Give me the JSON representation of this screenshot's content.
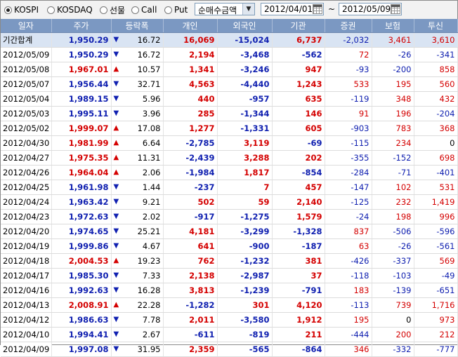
{
  "toolbar": {
    "radios": [
      {
        "label": "KOSPI",
        "checked": true
      },
      {
        "label": "KOSDAQ",
        "checked": false
      },
      {
        "label": "선물",
        "checked": false
      },
      {
        "label": "Call",
        "checked": false
      },
      {
        "label": "Put",
        "checked": false
      }
    ],
    "select_value": "순매수금액",
    "date_from": "2012/04/01",
    "date_to": "2012/05/09",
    "tilde": "~"
  },
  "table": {
    "headers": [
      "일자",
      "주가",
      "등락폭",
      "개인",
      "외국인",
      "기관",
      "증권",
      "보험",
      "투신"
    ],
    "rows": [
      {
        "date": "기간합계",
        "price": "1,950.29",
        "dir": "dn",
        "chg": "16.72",
        "indiv": "16,069",
        "foreign": "-15,024",
        "inst": "6,737",
        "sec": "-2,032",
        "ins": "3,461",
        "trust": "3,610"
      },
      {
        "date": "2012/05/09",
        "price": "1,950.29",
        "dir": "dn",
        "chg": "16.72",
        "indiv": "2,194",
        "foreign": "-3,468",
        "inst": "-562",
        "sec": "72",
        "ins": "-26",
        "trust": "-341"
      },
      {
        "date": "2012/05/08",
        "price": "1,967.01",
        "dir": "up",
        "chg": "10.57",
        "indiv": "1,341",
        "foreign": "-3,246",
        "inst": "947",
        "sec": "-93",
        "ins": "-200",
        "trust": "858"
      },
      {
        "date": "2012/05/07",
        "price": "1,956.44",
        "dir": "dn",
        "chg": "32.71",
        "indiv": "4,563",
        "foreign": "-4,440",
        "inst": "1,243",
        "sec": "533",
        "ins": "195",
        "trust": "560"
      },
      {
        "date": "2012/05/04",
        "price": "1,989.15",
        "dir": "dn",
        "chg": "5.96",
        "indiv": "440",
        "foreign": "-957",
        "inst": "635",
        "sec": "-119",
        "ins": "348",
        "trust": "432"
      },
      {
        "date": "2012/05/03",
        "price": "1,995.11",
        "dir": "dn",
        "chg": "3.96",
        "indiv": "285",
        "foreign": "-1,344",
        "inst": "146",
        "sec": "91",
        "ins": "196",
        "trust": "-204"
      },
      {
        "date": "2012/05/02",
        "price": "1,999.07",
        "dir": "up",
        "chg": "17.08",
        "indiv": "1,277",
        "foreign": "-1,331",
        "inst": "605",
        "sec": "-903",
        "ins": "783",
        "trust": "368"
      },
      {
        "date": "2012/04/30",
        "price": "1,981.99",
        "dir": "up",
        "chg": "6.64",
        "indiv": "-2,785",
        "foreign": "3,119",
        "inst": "-69",
        "sec": "-115",
        "ins": "234",
        "trust": "0"
      },
      {
        "date": "2012/04/27",
        "price": "1,975.35",
        "dir": "up",
        "chg": "11.31",
        "indiv": "-2,439",
        "foreign": "3,288",
        "inst": "202",
        "sec": "-355",
        "ins": "-152",
        "trust": "698"
      },
      {
        "date": "2012/04/26",
        "price": "1,964.04",
        "dir": "up",
        "chg": "2.06",
        "indiv": "-1,984",
        "foreign": "1,817",
        "inst": "-854",
        "sec": "-284",
        "ins": "-71",
        "trust": "-401"
      },
      {
        "date": "2012/04/25",
        "price": "1,961.98",
        "dir": "dn",
        "chg": "1.44",
        "indiv": "-237",
        "foreign": "7",
        "inst": "457",
        "sec": "-147",
        "ins": "102",
        "trust": "531"
      },
      {
        "date": "2012/04/24",
        "price": "1,963.42",
        "dir": "dn",
        "chg": "9.21",
        "indiv": "502",
        "foreign": "59",
        "inst": "2,140",
        "sec": "-125",
        "ins": "232",
        "trust": "1,419"
      },
      {
        "date": "2012/04/23",
        "price": "1,972.63",
        "dir": "dn",
        "chg": "2.02",
        "indiv": "-917",
        "foreign": "-1,275",
        "inst": "1,579",
        "sec": "-24",
        "ins": "198",
        "trust": "996"
      },
      {
        "date": "2012/04/20",
        "price": "1,974.65",
        "dir": "dn",
        "chg": "25.21",
        "indiv": "4,181",
        "foreign": "-3,299",
        "inst": "-1,328",
        "sec": "837",
        "ins": "-506",
        "trust": "-596"
      },
      {
        "date": "2012/04/19",
        "price": "1,999.86",
        "dir": "dn",
        "chg": "4.67",
        "indiv": "641",
        "foreign": "-900",
        "inst": "-187",
        "sec": "63",
        "ins": "-26",
        "trust": "-561"
      },
      {
        "date": "2012/04/18",
        "price": "2,004.53",
        "dir": "up",
        "chg": "19.23",
        "indiv": "762",
        "foreign": "-1,232",
        "inst": "381",
        "sec": "-426",
        "ins": "-337",
        "trust": "569"
      },
      {
        "date": "2012/04/17",
        "price": "1,985.30",
        "dir": "dn",
        "chg": "7.33",
        "indiv": "2,138",
        "foreign": "-2,987",
        "inst": "37",
        "sec": "-118",
        "ins": "-103",
        "trust": "-49"
      },
      {
        "date": "2012/04/16",
        "price": "1,992.63",
        "dir": "dn",
        "chg": "16.28",
        "indiv": "3,813",
        "foreign": "-1,239",
        "inst": "-791",
        "sec": "183",
        "ins": "-139",
        "trust": "-651"
      },
      {
        "date": "2012/04/13",
        "price": "2,008.91",
        "dir": "up",
        "chg": "22.28",
        "indiv": "-1,282",
        "foreign": "301",
        "inst": "4,120",
        "sec": "-113",
        "ins": "739",
        "trust": "1,716"
      },
      {
        "date": "2012/04/12",
        "price": "1,986.63",
        "dir": "dn",
        "chg": "7.78",
        "indiv": "2,011",
        "foreign": "-3,580",
        "inst": "1,912",
        "sec": "195",
        "ins": "0",
        "trust": "973"
      },
      {
        "date": "2012/04/10",
        "price": "1,994.41",
        "dir": "dn",
        "chg": "2.67",
        "indiv": "-611",
        "foreign": "-819",
        "inst": "211",
        "sec": "-444",
        "ins": "200",
        "trust": "212"
      },
      {
        "date": "2012/04/09",
        "price": "1,997.08",
        "dir": "dn",
        "chg": "31.95",
        "indiv": "2,359",
        "foreign": "-565",
        "inst": "-864",
        "sec": "346",
        "ins": "-332",
        "trust": "-777"
      }
    ]
  },
  "colors": {
    "up": "#d40000",
    "down": "#1020b0",
    "header_bg": "#7b98c2",
    "summary_bg": "#d9e4f3"
  }
}
